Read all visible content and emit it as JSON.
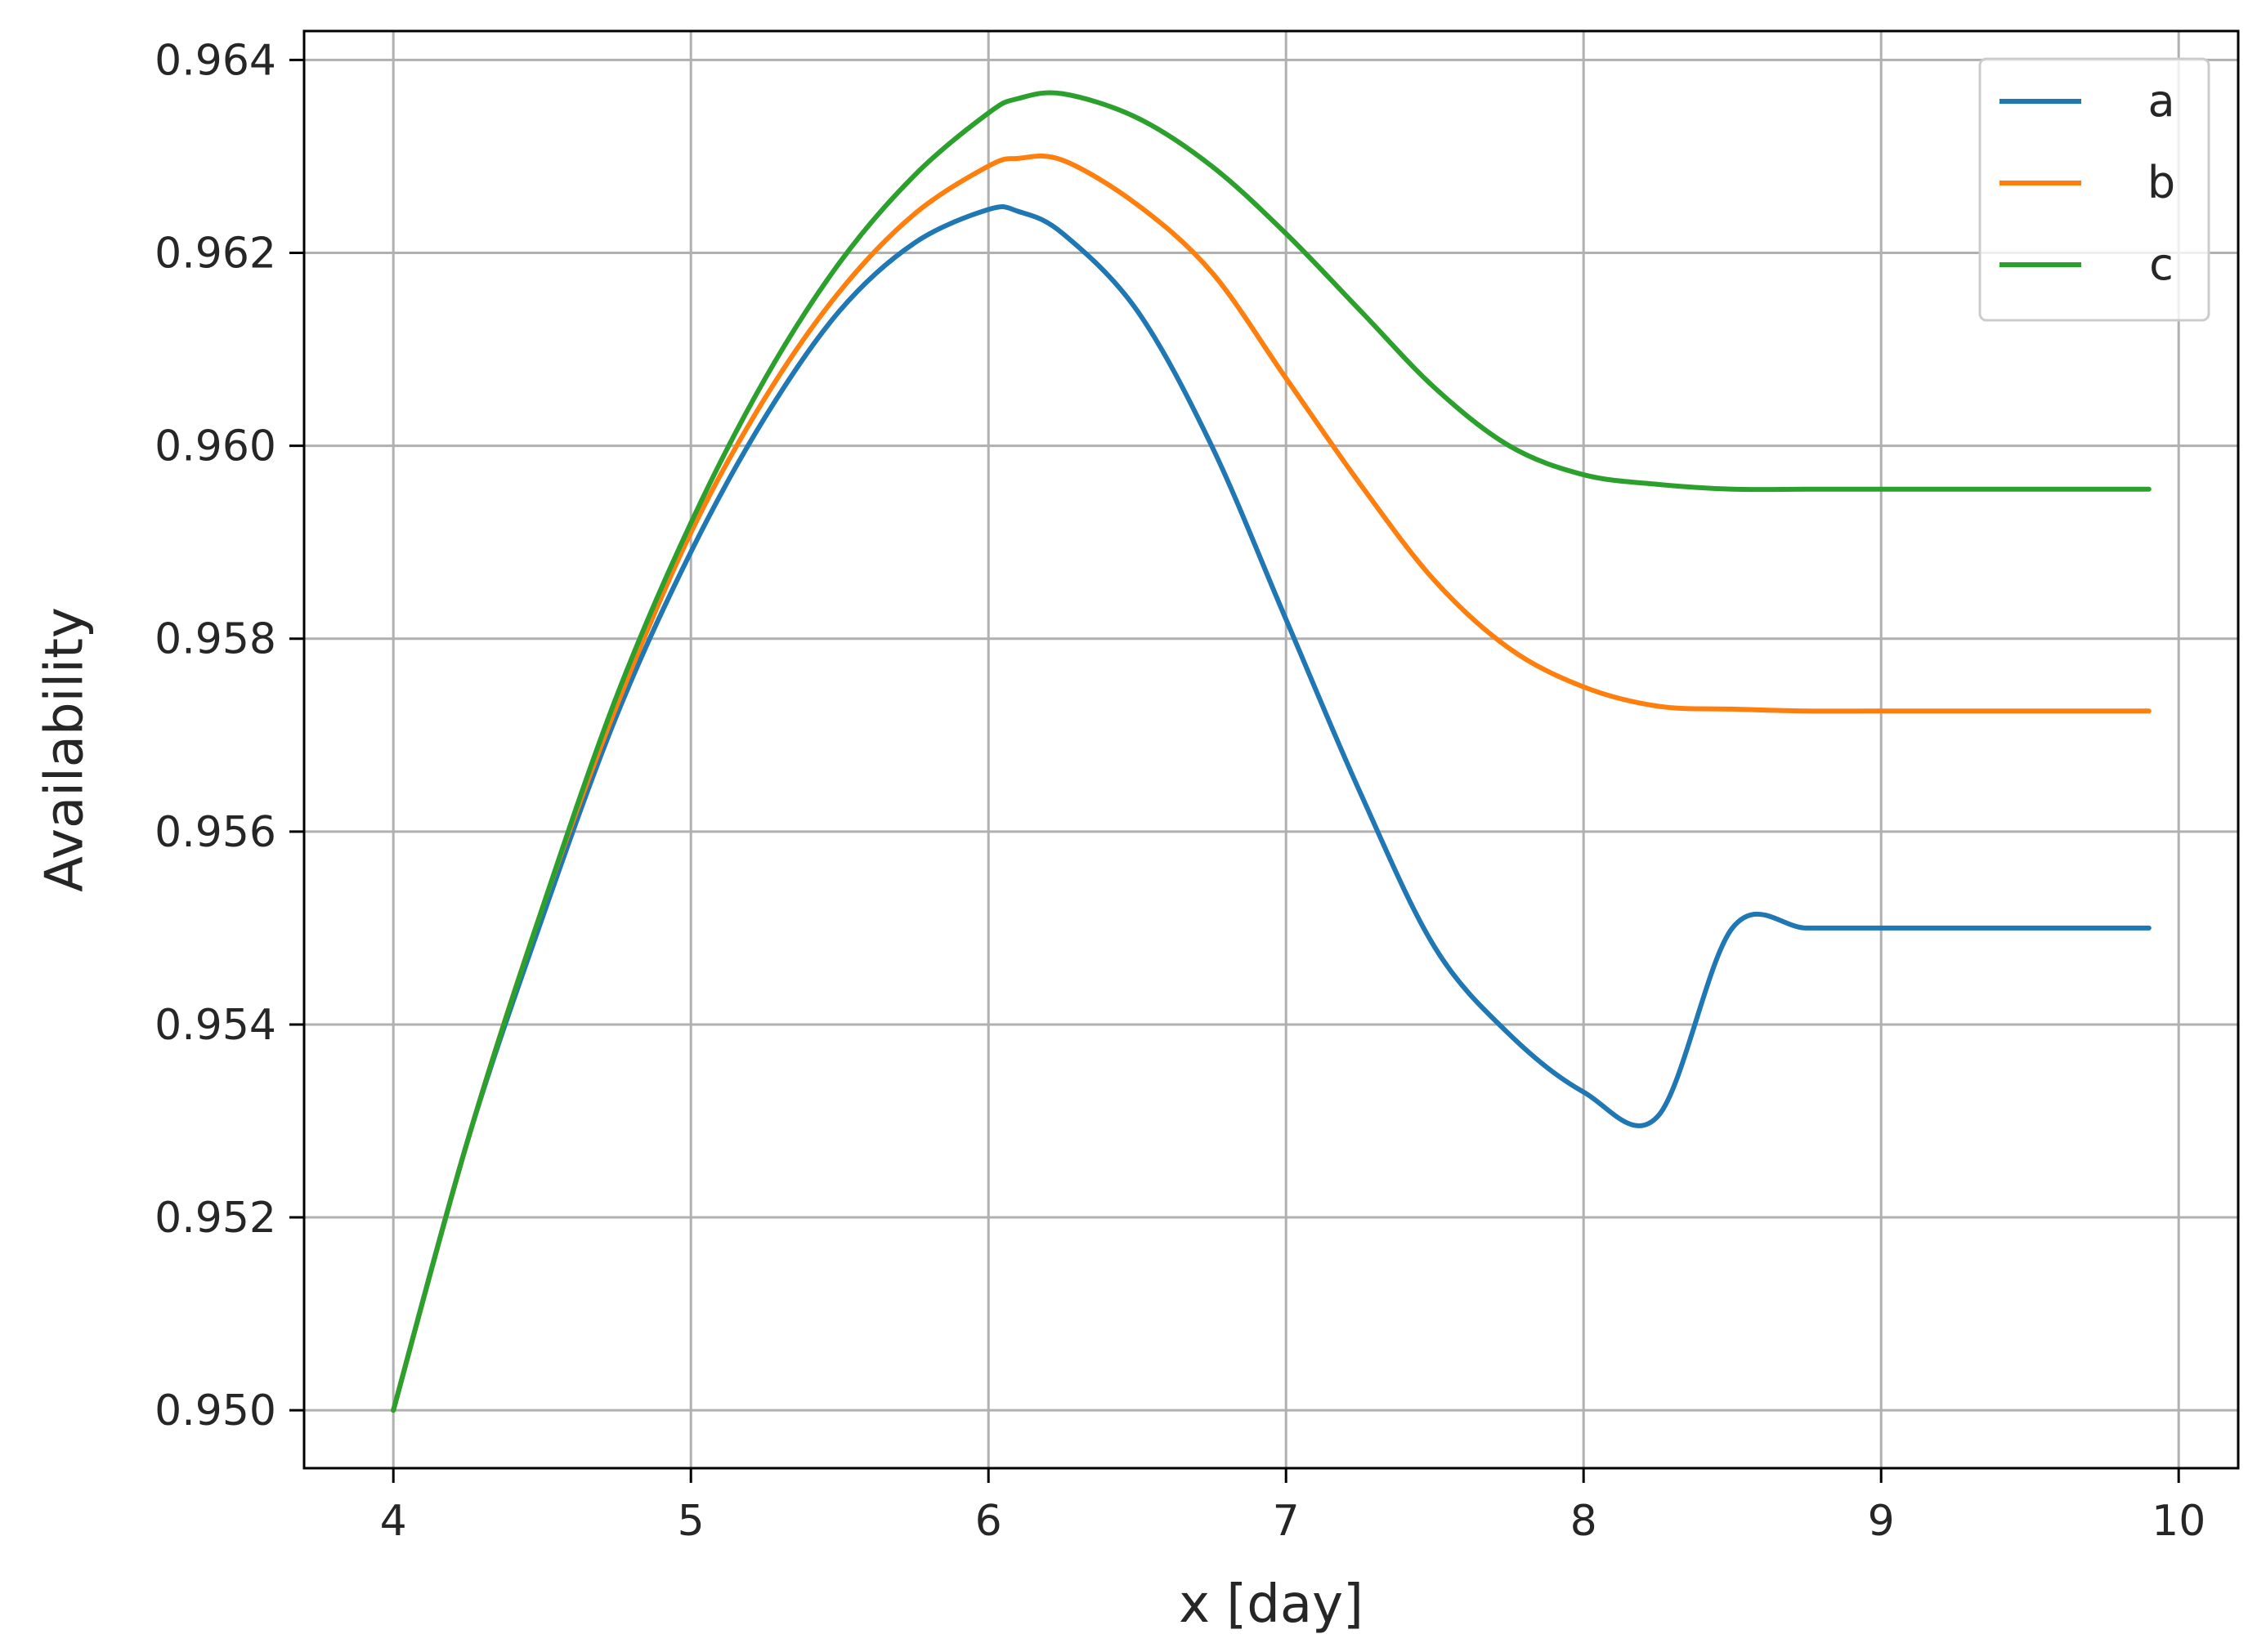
{
  "chart_data": {
    "type": "line",
    "title": "",
    "xlabel": "x [day]",
    "ylabel": "Availability",
    "xlim": [
      3.7,
      10.2
    ],
    "ylim": [
      0.9494,
      0.9643
    ],
    "grid": true,
    "legend_position": "top-right",
    "x_ticks": [
      4,
      5,
      6,
      7,
      8,
      9,
      10
    ],
    "y_ticks": [
      0.95,
      0.952,
      0.954,
      0.956,
      0.958,
      0.96,
      0.962,
      0.964
    ],
    "x_tick_labels": [
      "4",
      "5",
      "6",
      "7",
      "8",
      "9",
      "10"
    ],
    "y_tick_labels": [
      "0.950",
      "0.952",
      "0.954",
      "0.956",
      "0.958",
      "0.960",
      "0.962",
      "0.964"
    ],
    "x": [
      4.0,
      4.25,
      4.5,
      4.75,
      5.0,
      5.25,
      5.5,
      5.75,
      6.0,
      6.1,
      6.25,
      6.5,
      6.75,
      7.0,
      7.25,
      7.5,
      7.75,
      8.0,
      8.25,
      8.5,
      8.75,
      9.0,
      9.25,
      9.5,
      9.75,
      9.9
    ],
    "series": [
      {
        "name": "a",
        "color": "#1f77b4",
        "values": [
          0.95,
          0.9528,
          0.9551,
          0.9572,
          0.9589,
          0.9603,
          0.9614,
          0.9621,
          0.96245,
          0.96243,
          0.9622,
          0.9614,
          0.96,
          0.9582,
          0.9564,
          0.9548,
          0.9539,
          0.9533,
          0.95305,
          0.955,
          0.955,
          0.955,
          0.955,
          0.955,
          0.955,
          0.955
        ]
      },
      {
        "name": "b",
        "color": "#ff7f0e",
        "values": [
          0.95,
          0.9528,
          0.9552,
          0.9573,
          0.9591,
          0.9605,
          0.9616,
          0.9624,
          0.9629,
          0.96298,
          0.96296,
          0.9625,
          0.9618,
          0.9607,
          0.9596,
          0.9586,
          0.9579,
          0.9575,
          0.9573,
          0.95727,
          0.95725,
          0.95725,
          0.95725,
          0.95725,
          0.95725,
          0.95725
        ]
      },
      {
        "name": "c",
        "color": "#2ca02c",
        "values": [
          0.95,
          0.9528,
          0.9552,
          0.9574,
          0.9592,
          0.9607,
          0.9619,
          0.9628,
          0.96345,
          0.9636,
          0.96365,
          0.9634,
          0.9629,
          0.9622,
          0.9614,
          0.9606,
          0.96,
          0.9597,
          0.9596,
          0.95955,
          0.95955,
          0.95955,
          0.95955,
          0.95955,
          0.95955,
          0.95955
        ]
      }
    ]
  }
}
